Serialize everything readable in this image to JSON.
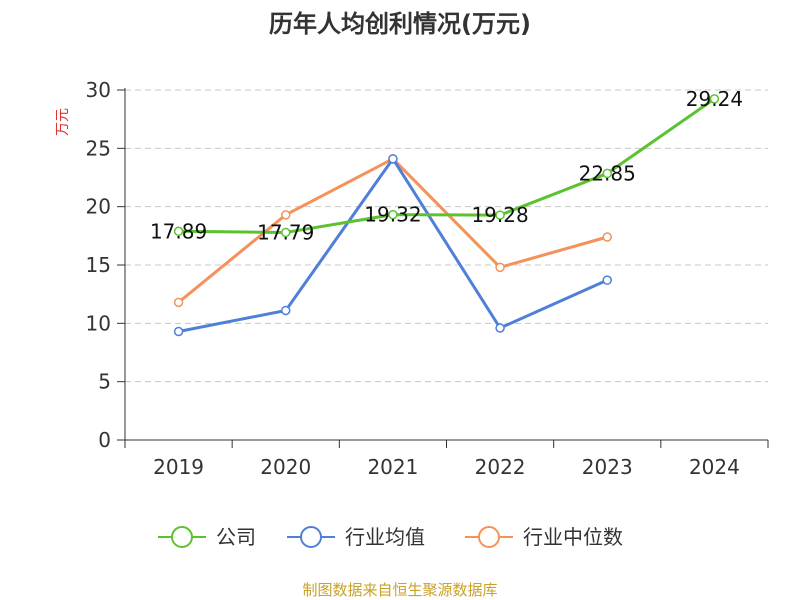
{
  "chart_data": {
    "type": "line",
    "title": "历年人均创利情况(万元)",
    "ylabel": "万元",
    "xlabel": "",
    "categories": [
      "2019",
      "2020",
      "2021",
      "2022",
      "2023",
      "2024"
    ],
    "ylim": [
      0,
      30
    ],
    "yticks": [
      0,
      5,
      10,
      15,
      20,
      25,
      30
    ],
    "grid": true,
    "legend_position": "bottom",
    "series": [
      {
        "name": "公司",
        "color": "#5cc230",
        "values": [
          17.89,
          17.79,
          19.32,
          19.28,
          22.85,
          29.24
        ],
        "show_labels": true
      },
      {
        "name": "行业均值",
        "color": "#4f7fd8",
        "values": [
          9.3,
          11.1,
          24.1,
          9.6,
          13.7,
          null
        ],
        "show_labels": false
      },
      {
        "name": "行业中位数",
        "color": "#f5915a",
        "values": [
          11.8,
          19.3,
          24.1,
          14.8,
          17.4,
          null
        ],
        "show_labels": false
      }
    ],
    "source": "制图数据来自恒生聚源数据库"
  }
}
